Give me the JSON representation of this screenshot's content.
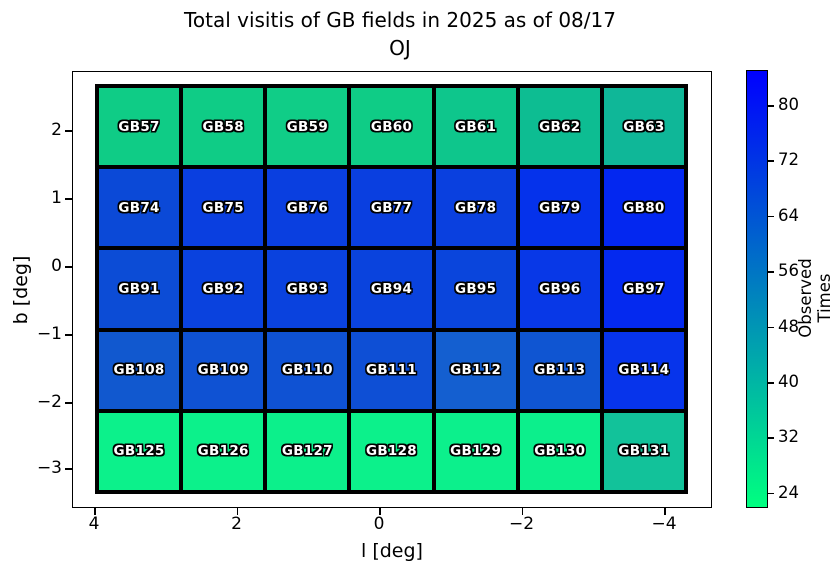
{
  "title": {
    "line1": "Total visitis of GB fields in 2025 as of 08/17",
    "line2": "OJ"
  },
  "axes": {
    "xlabel": "l [deg]",
    "ylabel": "b [deg]",
    "x_ticks": [
      "4",
      "2",
      "0",
      "−2",
      "−4"
    ],
    "y_ticks": [
      "2",
      "1",
      "0",
      "−1",
      "−2",
      "−3"
    ]
  },
  "colorbar": {
    "label": "Observed Times",
    "ticks": [
      "80",
      "72",
      "64",
      "56",
      "48",
      "40",
      "32",
      "24"
    ],
    "top_color": "#0000ff",
    "bottom_color": "#00ff80"
  },
  "chart_data": {
    "type": "heatmap",
    "title": "Total visitis of GB fields in 2025 as of 08/17 OJ",
    "xlabel": "l [deg]",
    "ylabel": "b [deg]",
    "x_axis_reversed": true,
    "x_range": [
      4.4,
      -4.4
    ],
    "y_range": [
      -3.4,
      2.7
    ],
    "colormap": "winter_r",
    "value_label": "Observed Times",
    "value_range_estimated": [
      22,
      85
    ],
    "values_estimated": true,
    "cells": [
      [
        {
          "label": "GB57",
          "color": "#0fcc86",
          "value": 34
        },
        {
          "label": "GB58",
          "color": "#0fcc86",
          "value": 34
        },
        {
          "label": "GB59",
          "color": "#10cd87",
          "value": 34
        },
        {
          "label": "GB60",
          "color": "#0fcc86",
          "value": 34
        },
        {
          "label": "GB61",
          "color": "#0ec68c",
          "value": 36
        },
        {
          "label": "GB62",
          "color": "#0dbd92",
          "value": 38
        },
        {
          "label": "GB63",
          "color": "#0fb798",
          "value": 40
        }
      ],
      [
        {
          "label": "GB74",
          "color": "#0b49d7",
          "value": 67
        },
        {
          "label": "GB75",
          "color": "#0a3fe0",
          "value": 69
        },
        {
          "label": "GB76",
          "color": "#0a3fe0",
          "value": 69
        },
        {
          "label": "GB77",
          "color": "#0a3fe0",
          "value": 69
        },
        {
          "label": "GB78",
          "color": "#0a40df",
          "value": 69
        },
        {
          "label": "GB79",
          "color": "#0532eb",
          "value": 73
        },
        {
          "label": "GB80",
          "color": "#0327f0",
          "value": 76
        }
      ],
      [
        {
          "label": "GB91",
          "color": "#0c4cd6",
          "value": 66
        },
        {
          "label": "GB92",
          "color": "#0a42de",
          "value": 68
        },
        {
          "label": "GB93",
          "color": "#0a42de",
          "value": 68
        },
        {
          "label": "GB94",
          "color": "#0a43dd",
          "value": 68
        },
        {
          "label": "GB95",
          "color": "#0a45dc",
          "value": 68
        },
        {
          "label": "GB96",
          "color": "#0838e7",
          "value": 71
        },
        {
          "label": "GB97",
          "color": "#0429ef",
          "value": 75
        }
      ],
      [
        {
          "label": "GB108",
          "color": "#1158cf",
          "value": 63
        },
        {
          "label": "GB109",
          "color": "#0f52d3",
          "value": 64
        },
        {
          "label": "GB110",
          "color": "#0f52d3",
          "value": 64
        },
        {
          "label": "GB111",
          "color": "#0e4fd5",
          "value": 65
        },
        {
          "label": "GB112",
          "color": "#145fd0",
          "value": 61
        },
        {
          "label": "GB113",
          "color": "#0f55d2",
          "value": 64
        },
        {
          "label": "GB114",
          "color": "#0734eb",
          "value": 72
        }
      ],
      [
        {
          "label": "GB125",
          "color": "#0cf18b",
          "value": 25
        },
        {
          "label": "GB126",
          "color": "#0cf18b",
          "value": 25
        },
        {
          "label": "GB127",
          "color": "#0cf08b",
          "value": 25
        },
        {
          "label": "GB128",
          "color": "#0cf18b",
          "value": 25
        },
        {
          "label": "GB129",
          "color": "#0cf08c",
          "value": 25
        },
        {
          "label": "GB130",
          "color": "#0cef8c",
          "value": 25
        },
        {
          "label": "GB131",
          "color": "#12c29a",
          "value": 37
        }
      ]
    ]
  }
}
